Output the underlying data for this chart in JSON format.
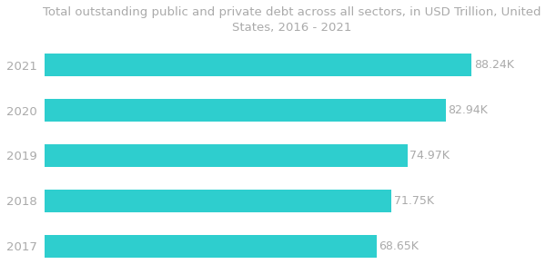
{
  "title_line1": "Total outstanding public and private debt across all sectors, in USD Trillion, United",
  "title_line2": "States, 2016 - 2021",
  "categories": [
    "2017",
    "2018",
    "2019",
    "2020",
    "2021"
  ],
  "values": [
    68.65,
    71.75,
    74.97,
    82.94,
    88.24
  ],
  "labels": [
    "68.65K",
    "71.75K",
    "74.97K",
    "82.94K",
    "88.24K"
  ],
  "bar_color": "#2ECECE",
  "background_color": "#ffffff",
  "title_color": "#aaaaaa",
  "label_color": "#aaaaaa",
  "ytick_color": "#aaaaaa",
  "title_fontsize": 9.5,
  "label_fontsize": 9.0,
  "ytick_fontsize": 9.5
}
